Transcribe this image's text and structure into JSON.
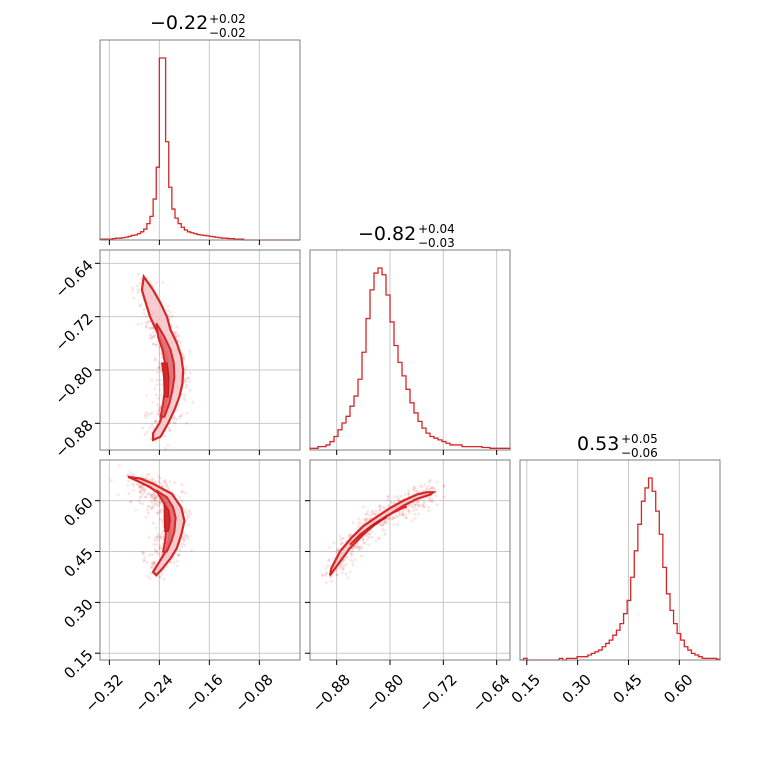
{
  "chart_data": {
    "type": "corner",
    "colors": {
      "series": "#d62728",
      "frame": "#7f7f7f",
      "grid": "#c8c8c8"
    },
    "parameters": [
      {
        "range": [
          -0.335,
          -0.015
        ],
        "ticks": [
          -0.32,
          -0.24,
          -0.16,
          -0.08
        ],
        "tick_labels": [
          "−0.32",
          "−0.24",
          "−0.16",
          "−0.08"
        ],
        "title": {
          "main": "−0.22",
          "plus": "+0.02",
          "minus": "−0.02"
        },
        "median": -0.22,
        "err_plus": 0.02,
        "err_minus": 0.02,
        "hist": {
          "start": -0.335,
          "end": -0.015,
          "counts": [
            1,
            1,
            1,
            1,
            1.5,
            2,
            2,
            2.5,
            3,
            4,
            5,
            5.5,
            7,
            9,
            12,
            18,
            26,
            45,
            80,
            200,
            200,
            108,
            58,
            34,
            24,
            18,
            14,
            11,
            9,
            8,
            7,
            6,
            5.5,
            5,
            4.5,
            4,
            3.5,
            3,
            2.5,
            2,
            2,
            1.5,
            1.5,
            1,
            1,
            1,
            0,
            0,
            0,
            0,
            0,
            0,
            0,
            0,
            0,
            0,
            0,
            0,
            0,
            0,
            0,
            0,
            0,
            0
          ]
        }
      },
      {
        "range": [
          -0.92,
          -0.62
        ],
        "ticks": [
          -0.88,
          -0.8,
          -0.72,
          -0.64
        ],
        "tick_labels": [
          "−0.88",
          "−0.80",
          "−0.72",
          "−0.64"
        ],
        "title": {
          "main": "−0.82",
          "plus": "+0.04",
          "minus": "−0.03"
        },
        "median": -0.82,
        "err_plus": 0.04,
        "err_minus": 0.03,
        "hist": {
          "start": -0.92,
          "end": -0.62,
          "counts": [
            1,
            1,
            2,
            2,
            3,
            5,
            8,
            12,
            16,
            20,
            26,
            32,
            42,
            58,
            78,
            95,
            105,
            108,
            104,
            92,
            76,
            62,
            52,
            44,
            36,
            28,
            22,
            17,
            13,
            10,
            8,
            7,
            6,
            5,
            4,
            3,
            3,
            3,
            2,
            2,
            2,
            2,
            2,
            1.5,
            1.5,
            1,
            1,
            1,
            1,
            1
          ]
        }
      },
      {
        "range": [
          0.13,
          0.72
        ],
        "ticks": [
          0.15,
          0.3,
          0.45,
          0.6
        ],
        "tick_labels": [
          "0.15",
          "0.30",
          "0.45",
          "0.60"
        ],
        "title": {
          "main": "0.53",
          "plus": "+0.05",
          "minus": "−0.06"
        },
        "median": 0.53,
        "err_plus": 0.05,
        "err_minus": 0.06,
        "hist": {
          "start": 0.13,
          "end": 0.72,
          "counts": [
            0,
            1,
            0,
            0,
            0,
            0,
            0,
            0,
            0,
            0,
            0,
            1,
            0,
            1,
            1,
            1,
            2,
            2,
            2,
            3,
            4,
            5,
            6,
            8,
            10,
            12,
            15,
            18,
            22,
            28,
            36,
            50,
            66,
            82,
            96,
            104,
            110,
            102,
            90,
            76,
            56,
            40,
            30,
            22,
            16,
            12,
            8,
            6,
            4,
            3,
            2,
            1,
            1,
            1,
            1,
            0.5
          ]
        }
      }
    ],
    "contour_levels": [
      "outer",
      "inner",
      "core"
    ],
    "pairs": [
      {
        "x_param": 0,
        "y_param": 1,
        "outer": [
          [
            -0.265,
            -0.66
          ],
          [
            -0.25,
            -0.68
          ],
          [
            -0.238,
            -0.7
          ],
          [
            -0.228,
            -0.72
          ],
          [
            -0.222,
            -0.74
          ],
          [
            -0.212,
            -0.76
          ],
          [
            -0.205,
            -0.78
          ],
          [
            -0.202,
            -0.8
          ],
          [
            -0.203,
            -0.82
          ],
          [
            -0.208,
            -0.84
          ],
          [
            -0.216,
            -0.86
          ],
          [
            -0.226,
            -0.88
          ],
          [
            -0.238,
            -0.9
          ],
          [
            -0.25,
            -0.905
          ],
          [
            -0.25,
            -0.895
          ],
          [
            -0.24,
            -0.88
          ],
          [
            -0.232,
            -0.86
          ],
          [
            -0.228,
            -0.84
          ],
          [
            -0.226,
            -0.82
          ],
          [
            -0.226,
            -0.8
          ],
          [
            -0.229,
            -0.78
          ],
          [
            -0.236,
            -0.76
          ],
          [
            -0.245,
            -0.74
          ],
          [
            -0.255,
            -0.72
          ],
          [
            -0.268,
            -0.68
          ]
        ],
        "inner": [
          [
            -0.245,
            -0.73
          ],
          [
            -0.232,
            -0.75
          ],
          [
            -0.222,
            -0.77
          ],
          [
            -0.217,
            -0.79
          ],
          [
            -0.216,
            -0.81
          ],
          [
            -0.219,
            -0.83
          ],
          [
            -0.224,
            -0.85
          ],
          [
            -0.232,
            -0.87
          ],
          [
            -0.238,
            -0.87
          ],
          [
            -0.234,
            -0.85
          ],
          [
            -0.231,
            -0.83
          ],
          [
            -0.23,
            -0.81
          ],
          [
            -0.231,
            -0.79
          ],
          [
            -0.235,
            -0.77
          ],
          [
            -0.242,
            -0.75
          ]
        ],
        "core": [
          [
            -0.236,
            -0.79
          ],
          [
            -0.228,
            -0.79
          ],
          [
            -0.225,
            -0.81
          ],
          [
            -0.226,
            -0.84
          ],
          [
            -0.232,
            -0.84
          ],
          [
            -0.233,
            -0.81
          ]
        ]
      },
      {
        "x_param": 0,
        "y_param": 2,
        "outer": [
          [
            -0.29,
            0.67
          ],
          [
            -0.27,
            0.665
          ],
          [
            -0.25,
            0.65
          ],
          [
            -0.235,
            0.635
          ],
          [
            -0.22,
            0.62
          ],
          [
            -0.205,
            0.58
          ],
          [
            -0.2,
            0.54
          ],
          [
            -0.205,
            0.5
          ],
          [
            -0.212,
            0.46
          ],
          [
            -0.222,
            0.43
          ],
          [
            -0.235,
            0.4
          ],
          [
            -0.245,
            0.38
          ],
          [
            -0.25,
            0.39
          ],
          [
            -0.24,
            0.42
          ],
          [
            -0.23,
            0.45
          ],
          [
            -0.225,
            0.48
          ],
          [
            -0.223,
            0.52
          ],
          [
            -0.224,
            0.56
          ],
          [
            -0.23,
            0.6
          ],
          [
            -0.24,
            0.62
          ],
          [
            -0.255,
            0.64
          ],
          [
            -0.275,
            0.658
          ]
        ],
        "inner": [
          [
            -0.245,
            0.63
          ],
          [
            -0.228,
            0.61
          ],
          [
            -0.218,
            0.58
          ],
          [
            -0.214,
            0.55
          ],
          [
            -0.216,
            0.51
          ],
          [
            -0.221,
            0.48
          ],
          [
            -0.228,
            0.45
          ],
          [
            -0.234,
            0.45
          ],
          [
            -0.231,
            0.48
          ],
          [
            -0.229,
            0.52
          ],
          [
            -0.229,
            0.56
          ],
          [
            -0.232,
            0.59
          ],
          [
            -0.24,
            0.615
          ]
        ],
        "core": [
          [
            -0.232,
            0.59
          ],
          [
            -0.225,
            0.57
          ],
          [
            -0.223,
            0.54
          ],
          [
            -0.226,
            0.51
          ],
          [
            -0.231,
            0.51
          ],
          [
            -0.232,
            0.55
          ]
        ]
      },
      {
        "x_param": 1,
        "y_param": 2,
        "outer": [
          [
            -0.89,
            0.38
          ],
          [
            -0.875,
            0.42
          ],
          [
            -0.86,
            0.46
          ],
          [
            -0.84,
            0.5
          ],
          [
            -0.82,
            0.535
          ],
          [
            -0.8,
            0.56
          ],
          [
            -0.78,
            0.585
          ],
          [
            -0.76,
            0.605
          ],
          [
            -0.74,
            0.618
          ],
          [
            -0.735,
            0.625
          ],
          [
            -0.745,
            0.625
          ],
          [
            -0.76,
            0.618
          ],
          [
            -0.78,
            0.6
          ],
          [
            -0.8,
            0.578
          ],
          [
            -0.82,
            0.552
          ],
          [
            -0.84,
            0.525
          ],
          [
            -0.858,
            0.49
          ],
          [
            -0.875,
            0.45
          ],
          [
            -0.888,
            0.4
          ]
        ],
        "inner": [
          [
            -0.86,
            0.47
          ],
          [
            -0.845,
            0.5
          ],
          [
            -0.825,
            0.53
          ],
          [
            -0.805,
            0.555
          ],
          [
            -0.785,
            0.575
          ],
          [
            -0.775,
            0.583
          ],
          [
            -0.78,
            0.58
          ],
          [
            -0.8,
            0.56
          ],
          [
            -0.82,
            0.535
          ],
          [
            -0.84,
            0.505
          ],
          [
            -0.855,
            0.48
          ]
        ],
        "core": [
          [
            -0.835,
            0.515
          ],
          [
            -0.82,
            0.535
          ],
          [
            -0.805,
            0.55
          ],
          [
            -0.81,
            0.545
          ],
          [
            -0.825,
            0.525
          ]
        ]
      }
    ]
  }
}
